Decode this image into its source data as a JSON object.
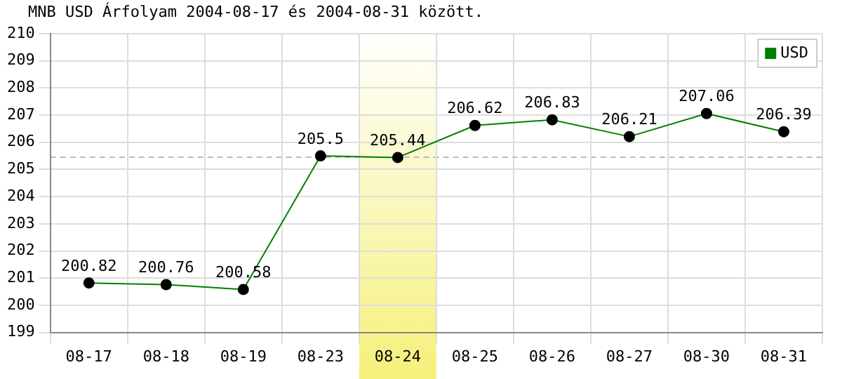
{
  "chart_data": {
    "type": "line",
    "title": "MNB USD Árfolyam 2004-08-17 és 2004-08-31 között.",
    "categories": [
      "08-17",
      "08-18",
      "08-19",
      "08-23",
      "08-24",
      "08-25",
      "08-26",
      "08-27",
      "08-30",
      "08-31"
    ],
    "series": [
      {
        "name": "USD",
        "color": "#008000",
        "values": [
          200.82,
          200.76,
          200.58,
          205.5,
          205.44,
          206.62,
          206.83,
          206.21,
          207.06,
          206.39
        ]
      }
    ],
    "ylim": [
      199,
      210
    ],
    "yticks": [
      199,
      200,
      201,
      202,
      203,
      204,
      205,
      206,
      207,
      208,
      209,
      210
    ],
    "ref_lines": [
      {
        "axis": "y",
        "value": 205.45,
        "color": "#bbbbbb",
        "line_style": "dashed"
      }
    ],
    "bands": [
      {
        "axis": "x",
        "from": "08-24",
        "to": "08-24",
        "color": "#f5f07a"
      }
    ],
    "grid": true,
    "legend": "top right",
    "marker": "circle",
    "line_style": "solid",
    "data_labels": true
  }
}
